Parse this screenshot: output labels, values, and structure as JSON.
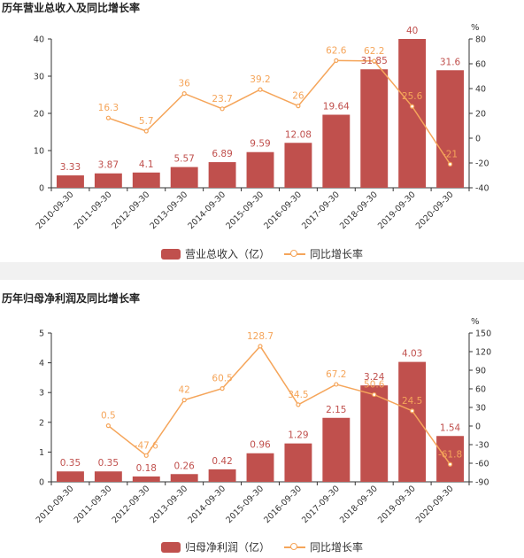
{
  "colors": {
    "bar": "#c0504d",
    "line": "#f5a55a",
    "axis": "#333333",
    "value_label_bar": "#c0504d",
    "value_label_line": "#f5a55a"
  },
  "chart_data": [
    {
      "type": "bar",
      "title": "历年营业总收入及同比增长率",
      "categories": [
        "2010-09-30",
        "2011-09-30",
        "2012-09-30",
        "2013-09-30",
        "2014-09-30",
        "2015-09-30",
        "2016-09-30",
        "2017-09-30",
        "2018-09-30",
        "2019-09-30",
        "2020-09-30"
      ],
      "series": [
        {
          "name": "营业总收入（亿）",
          "type": "bar",
          "axis": "left",
          "values": [
            3.33,
            3.87,
            4.1,
            5.57,
            6.89,
            9.59,
            12.08,
            19.64,
            31.85,
            40,
            31.6
          ]
        },
        {
          "name": "同比增长率",
          "type": "line",
          "axis": "right",
          "values": [
            null,
            16.3,
            5.7,
            36,
            23.7,
            39.2,
            26,
            62.6,
            62.2,
            25.6,
            -21
          ]
        }
      ],
      "ylim_left": [
        0,
        40
      ],
      "yticks_left": [
        0,
        10,
        20,
        30,
        40
      ],
      "ylim_right": [
        -40,
        80
      ],
      "yticks_right": [
        -40,
        -20,
        0,
        20,
        40,
        60,
        80
      ],
      "ylabel_right": "%",
      "legend": "bottom-center"
    },
    {
      "type": "bar",
      "title": "历年归母净利润及同比增长率",
      "categories": [
        "2010-09-30",
        "2011-09-30",
        "2012-09-30",
        "2013-09-30",
        "2014-09-30",
        "2015-09-30",
        "2016-09-30",
        "2017-09-30",
        "2018-09-30",
        "2019-09-30",
        "2020-09-30"
      ],
      "series": [
        {
          "name": "归母净利润（亿）",
          "type": "bar",
          "axis": "left",
          "values": [
            0.35,
            0.35,
            0.18,
            0.26,
            0.42,
            0.96,
            1.29,
            2.15,
            3.24,
            4.03,
            1.54
          ]
        },
        {
          "name": "同比增长率",
          "type": "line",
          "axis": "right",
          "values": [
            null,
            0.5,
            -47.6,
            42,
            60.5,
            128.7,
            34.5,
            67.2,
            50.6,
            24.5,
            -61.8
          ]
        }
      ],
      "ylim_left": [
        0,
        5
      ],
      "yticks_left": [
        0,
        1,
        2,
        3,
        4,
        5
      ],
      "ylim_right": [
        -90,
        150
      ],
      "yticks_right": [
        -90,
        -60,
        -30,
        0,
        30,
        60,
        90,
        120,
        150
      ],
      "ylabel_right": "%",
      "legend": "bottom-center"
    }
  ]
}
